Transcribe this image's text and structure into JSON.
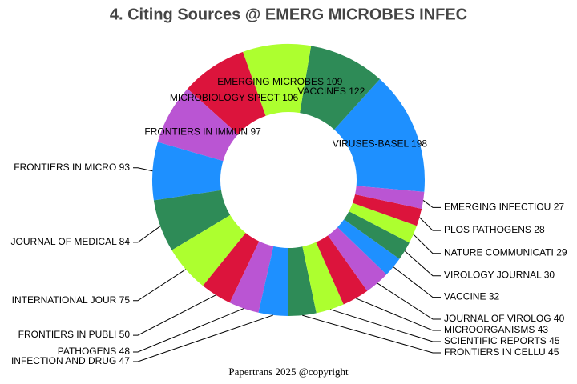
{
  "chart_data": {
    "type": "donut",
    "title": "4. Citing Sources @ EMERG MICROBES INFEC",
    "categories": [
      "VIRUSES-BASEL",
      "VACCINES",
      "EMERGING MICROBES",
      "MICROBIOLOGY SPECT",
      "FRONTIERS IN IMMUN",
      "FRONTIERS IN MICRO",
      "JOURNAL OF MEDICAL",
      "INTERNATIONAL JOUR",
      "FRONTIERS IN PUBLI",
      "PATHOGENS",
      "INFECTION AND DRUG",
      "FRONTIERS IN CELLU",
      "SCIENTIFIC REPORTS",
      "MICROORGANISMS",
      "JOURNAL OF VIROLOG",
      "VACCINE",
      "VIROLOGY JOURNAL",
      "NATURE COMMUNICATI",
      "PLOS PATHOGENS",
      "EMERGING INFECTIOU"
    ],
    "values": [
      198,
      122,
      109,
      106,
      97,
      93,
      84,
      75,
      50,
      48,
      47,
      45,
      45,
      43,
      40,
      32,
      30,
      29,
      28,
      27
    ],
    "colors": [
      "#1e90ff",
      "#2e8b57",
      "#adff2f",
      "#dc143c",
      "#ba55d3"
    ],
    "footer": "Papertrans 2025 @copyright"
  }
}
